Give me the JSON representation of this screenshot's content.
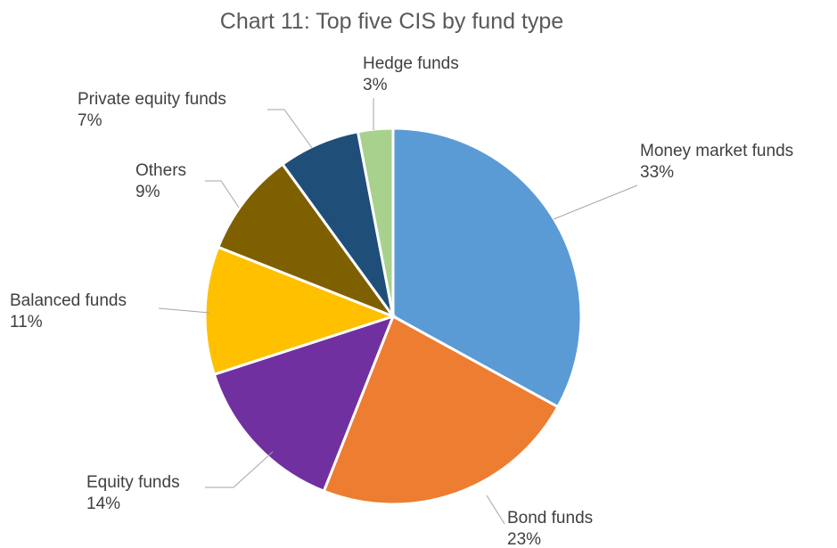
{
  "chart_data": {
    "type": "pie",
    "title": "Chart 11: Top five CIS by fund type",
    "slices": [
      {
        "label": "Money market funds",
        "value": 33,
        "value_label": "33%",
        "color": "#5b9bd5"
      },
      {
        "label": "Bond funds",
        "value": 23,
        "value_label": "23%",
        "color": "#ed7d31"
      },
      {
        "label": "Equity funds",
        "value": 14,
        "value_label": "14%",
        "color": "#7030a0"
      },
      {
        "label": "Balanced funds",
        "value": 11,
        "value_label": "11%",
        "color": "#ffc000"
      },
      {
        "label": "Others",
        "value": 9,
        "value_label": "9%",
        "color": "#7f6000"
      },
      {
        "label": "Private equity funds",
        "value": 7,
        "value_label": "7%",
        "color": "#1f4e79"
      },
      {
        "label": "Hedge funds",
        "value": 3,
        "value_label": "3%",
        "color": "#a9d18e"
      }
    ]
  }
}
